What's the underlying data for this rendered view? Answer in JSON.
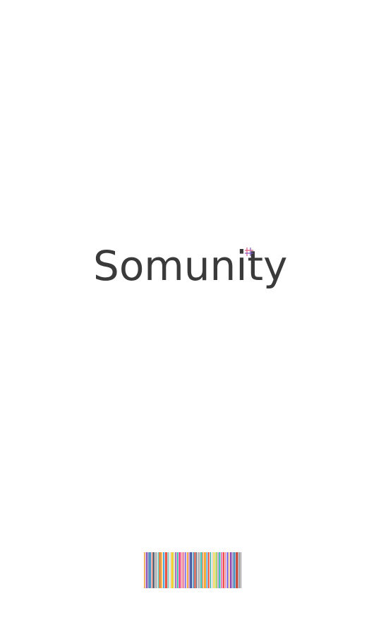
{
  "app": {
    "brand_name": "Somunity",
    "text_color": "#3a3a3a",
    "background": "#ffffff"
  },
  "logo_mark": {
    "icon": "hashtag-dot-icon",
    "colors": [
      "#e05a7a",
      "#7a5ac8"
    ]
  },
  "decor_barcode": {
    "icon": "rainbow-barcode-icon",
    "colors": [
      "#f2a23a",
      "#e8463c",
      "#9b59b6",
      "#d9d9d9",
      "#3fa0d8",
      "#2bb0a0",
      "#c0392b",
      "#8e44ad",
      "#e67ea0",
      "#1abc9c",
      "#f1c40f",
      "#e74c3c",
      "#d35400",
      "#34495e",
      "#2c3e90",
      "#6c5ce7",
      "#e84393",
      "#a8d05a",
      "#16a085",
      "#f39c12",
      "#b0b0b0",
      "#2980b9"
    ]
  }
}
